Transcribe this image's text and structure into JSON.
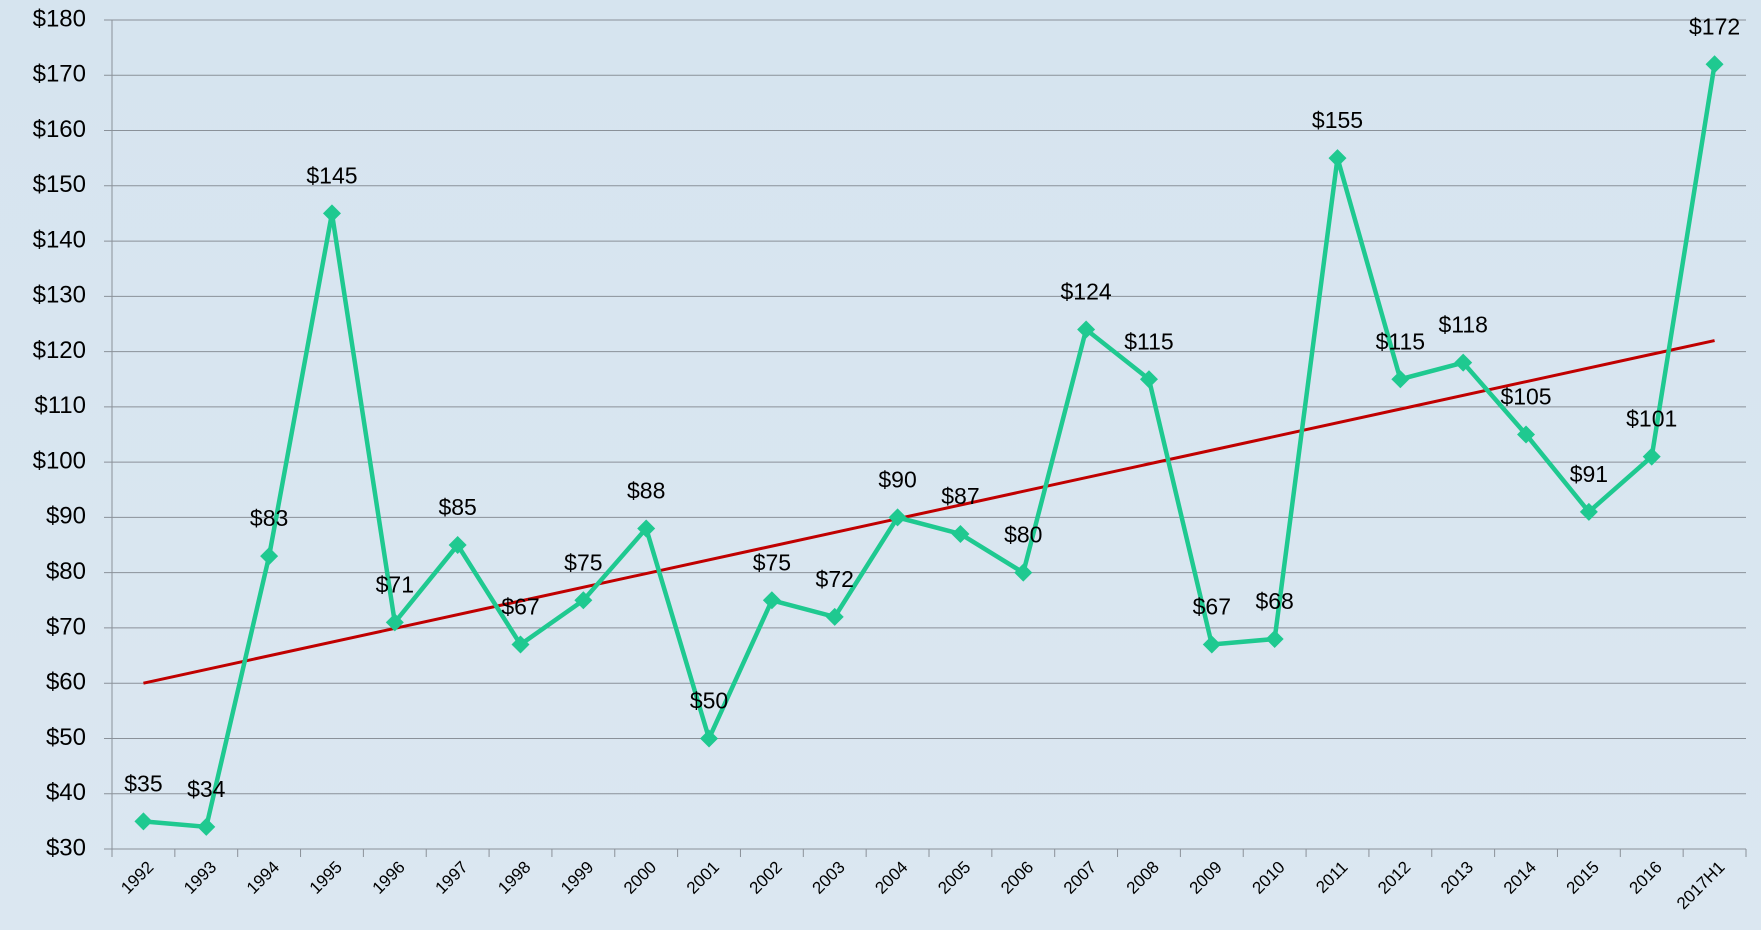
{
  "chart_data": {
    "type": "line",
    "categories": [
      "1992",
      "1993",
      "1994",
      "1995",
      "1996",
      "1997",
      "1998",
      "1999",
      "2000",
      "2001",
      "2002",
      "2003",
      "2004",
      "2005",
      "2006",
      "2007",
      "2008",
      "2009",
      "2010",
      "2011",
      "2012",
      "2013",
      "2014",
      "2015",
      "2016",
      "2017H1"
    ],
    "series": [
      {
        "color": "#1fc990",
        "values": [
          35,
          34,
          83,
          145,
          71,
          85,
          67,
          75,
          88,
          50,
          75,
          72,
          90,
          87,
          80,
          124,
          115,
          67,
          68,
          155,
          115,
          118,
          105,
          91,
          101,
          172
        ],
        "value_labels": [
          "$35",
          "$34",
          "$83",
          "$145",
          "$71",
          "$85",
          "$67",
          "$75",
          "$88",
          "$50",
          "$75",
          "$72",
          "$90",
          "$87",
          "$80",
          "$124",
          "$115",
          "$67",
          "$68",
          "$155",
          "$115",
          "$118",
          "$105",
          "$91",
          "$101",
          "$172"
        ]
      }
    ],
    "trend": {
      "color": "#c00000",
      "values": [
        60,
        122
      ]
    },
    "ylim": [
      30,
      180
    ],
    "yticks": [
      {
        "value": 30,
        "label": "$30"
      },
      {
        "value": 40,
        "label": "$40"
      },
      {
        "value": 50,
        "label": "$50"
      },
      {
        "value": 60,
        "label": "$60"
      },
      {
        "value": 70,
        "label": "$70"
      },
      {
        "value": 80,
        "label": "$80"
      },
      {
        "value": 90,
        "label": "$90"
      },
      {
        "value": 100,
        "label": "$100"
      },
      {
        "value": 110,
        "label": "$110"
      },
      {
        "value": 120,
        "label": "$120"
      },
      {
        "value": 130,
        "label": "$130"
      },
      {
        "value": 140,
        "label": "$140"
      },
      {
        "value": 150,
        "label": "$150"
      },
      {
        "value": 160,
        "label": "$160"
      },
      {
        "value": 170,
        "label": "$170"
      },
      {
        "value": 180,
        "label": "$180"
      }
    ],
    "grid": true
  }
}
